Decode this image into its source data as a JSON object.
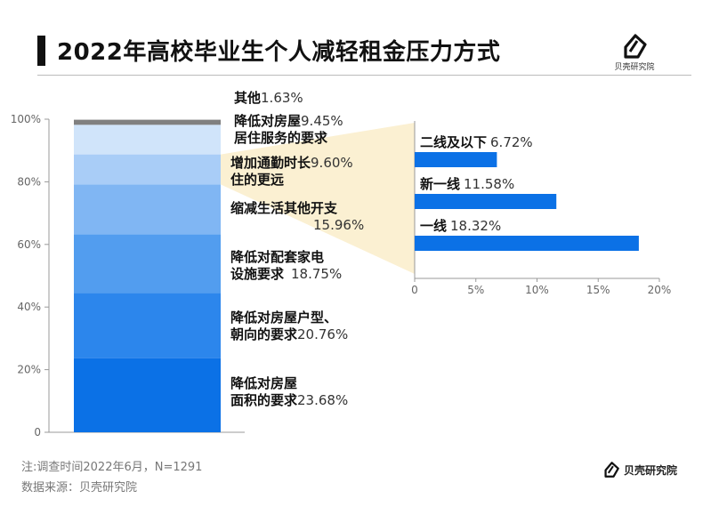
{
  "title": "2022年高校毕业生个人减轻租金压力方式",
  "brand": "贝壳研究院",
  "note": "注:调查时间2022年6月，N=1291",
  "source": "数据来源：贝壳研究院",
  "chart_data": [
    {
      "type": "bar",
      "stacked": true,
      "orientation": "vertical",
      "unit": "%",
      "ylim": [
        0,
        100
      ],
      "yticks": [
        "0",
        "20%",
        "40%",
        "60%",
        "80%",
        "100%"
      ],
      "segments": [
        {
          "label_lines": [
            "降低对房屋",
            "面积的要求"
          ],
          "value": 23.68,
          "pct_text": "23.68%",
          "color": "#0b71e6"
        },
        {
          "label_lines": [
            "降低对房屋户型、",
            "朝向的要求"
          ],
          "value": 20.76,
          "pct_text": "20.76%",
          "color": "#2c86ec"
        },
        {
          "label_lines": [
            "降低对配套家电",
            "设施要求"
          ],
          "value": 18.75,
          "pct_text": "18.75%",
          "color": "#529def"
        },
        {
          "label_lines": [
            "缩减生活其他开支"
          ],
          "value": 15.96,
          "pct_text": "15.96%",
          "color": "#80b6f3"
        },
        {
          "label_lines": [
            "增加通勤时长",
            "住的更远"
          ],
          "value": 9.6,
          "pct_text": "9.60%",
          "color": "#a9cdf7"
        },
        {
          "label_lines": [
            "降低对房屋",
            "居住服务的要求"
          ],
          "value": 9.45,
          "pct_text": "9.45%",
          "color": "#d0e4fa"
        },
        {
          "label_lines": [
            "其他"
          ],
          "value": 1.63,
          "pct_text": "1.63%",
          "color": "#808080"
        }
      ]
    },
    {
      "type": "bar",
      "orientation": "horizontal",
      "breakdown_of": "增加通勤时长住的更远",
      "xlim": [
        0,
        20
      ],
      "xticks": [
        "0",
        "5%",
        "10%",
        "15%",
        "20%"
      ],
      "categories": [
        "二线及以下",
        "新一线",
        "一线"
      ],
      "values": [
        6.72,
        11.58,
        18.32
      ],
      "value_texts": [
        "6.72%",
        "11.58%",
        "18.32%"
      ],
      "color": "#0b71e6",
      "connector_color": "#fbf0d2"
    }
  ]
}
